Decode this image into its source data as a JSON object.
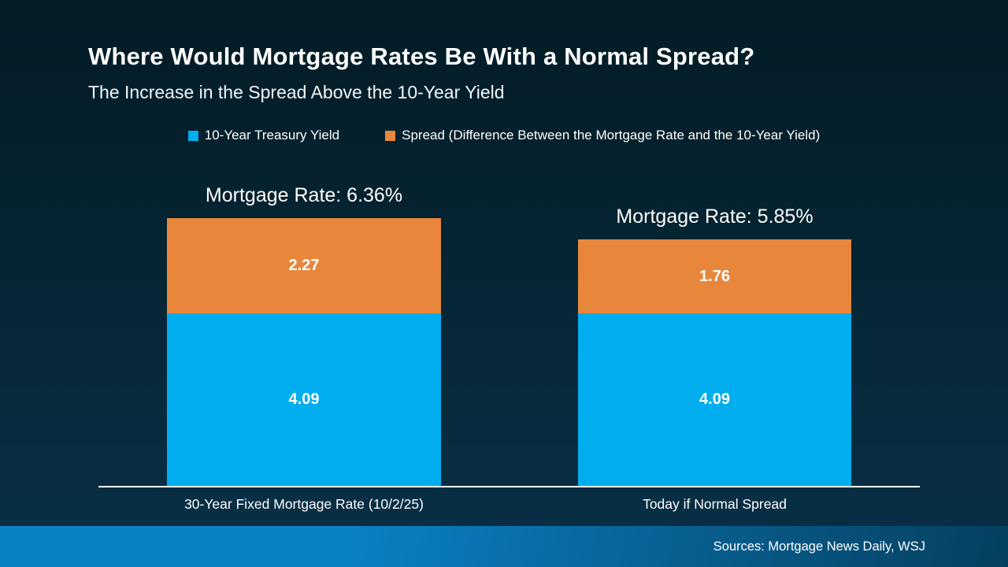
{
  "header": {
    "title": "Where Would Mortgage Rates Be With a Normal Spread?",
    "subtitle": "The Increase in the Spread Above the 10-Year Yield"
  },
  "legend": {
    "items": [
      {
        "label": "10-Year Treasury Yield",
        "color": "#00aeef"
      },
      {
        "label": "Spread (Difference Between the Mortgage Rate and the 10-Year Yield)",
        "color": "#e8873c"
      }
    ]
  },
  "chart_data": {
    "type": "bar",
    "stacked": true,
    "title": "Where Would Mortgage Rates Be With a Normal Spread?",
    "subtitle": "The Increase in the Spread Above the 10-Year Yield",
    "categories": [
      "30-Year Fixed Mortgage Rate (10/2/25)",
      "Today if Normal Spread"
    ],
    "series": [
      {
        "name": "10-Year Treasury Yield",
        "color": "#00aeef",
        "values": [
          4.09,
          4.09
        ]
      },
      {
        "name": "Spread (Difference Between the Mortgage Rate and the 10-Year Yield)",
        "color": "#e8873c",
        "values": [
          2.27,
          1.76
        ]
      }
    ],
    "totals": [
      6.36,
      5.85
    ],
    "annotations": [
      "Mortgage Rate: 6.36%",
      "Mortgage Rate: 5.85%"
    ],
    "ylim": [
      0,
      6.5
    ],
    "grid": false,
    "legend_position": "top",
    "value_labels": true
  },
  "footer": {
    "source": "Sources: Mortgage News Daily, WSJ"
  },
  "colors": {
    "background_top": "#041c26",
    "background_bottom": "#093048",
    "bar_blue": "#00aeef",
    "bar_orange": "#e8873c",
    "axis_line": "#ffffff",
    "footer_left": "#0a80c4",
    "footer_right": "#053f5e"
  }
}
